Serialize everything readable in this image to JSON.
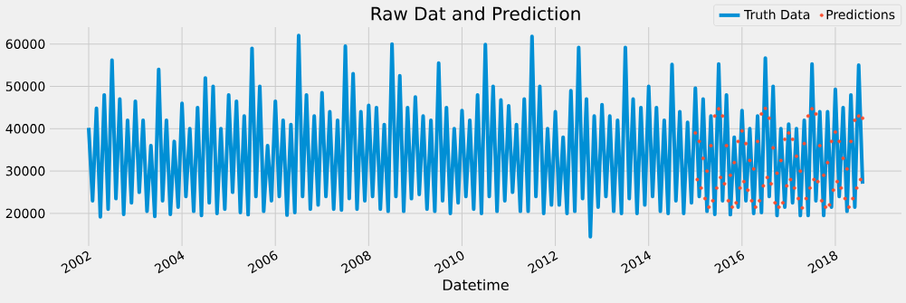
{
  "chart_data": {
    "type": "line",
    "title": "Raw Dat and Prediction",
    "xlabel": "Datetime",
    "xlim": [
      "2001-03",
      "2019-06"
    ],
    "ylim": [
      12300,
      64000
    ],
    "xticks": [
      "2002",
      "2004",
      "2006",
      "2008",
      "2010",
      "2012",
      "2014",
      "2016",
      "2018"
    ],
    "yticks": [
      20000,
      30000,
      40000,
      50000,
      60000
    ],
    "grid": true,
    "legend": "top right",
    "series": [
      {
        "name": "Truth Data",
        "color": "#008fd5",
        "marker": "none",
        "x": [
          "2002-01",
          "2002-02",
          "2002-03",
          "2002-04",
          "2002-05",
          "2002-06",
          "2002-07",
          "2002-08",
          "2002-09",
          "2002-10",
          "2002-11",
          "2002-12",
          "2003-01",
          "2003-02",
          "2003-03",
          "2003-04",
          "2003-05",
          "2003-06",
          "2003-07",
          "2003-08",
          "2003-09",
          "2003-10",
          "2003-11",
          "2003-12",
          "2004-01",
          "2004-02",
          "2004-03",
          "2004-04",
          "2004-05",
          "2004-06",
          "2004-07",
          "2004-08",
          "2004-09",
          "2004-10",
          "2004-11",
          "2004-12",
          "2005-01",
          "2005-02",
          "2005-03",
          "2005-04",
          "2005-05",
          "2005-06",
          "2005-07",
          "2005-08",
          "2005-09",
          "2005-10",
          "2005-11",
          "2005-12",
          "2006-01",
          "2006-02",
          "2006-03",
          "2006-04",
          "2006-05",
          "2006-06",
          "2006-07",
          "2006-08",
          "2006-09",
          "2006-10",
          "2006-11",
          "2006-12",
          "2007-01",
          "2007-02",
          "2007-03",
          "2007-04",
          "2007-05",
          "2007-06",
          "2007-07",
          "2007-08",
          "2007-09",
          "2007-10",
          "2007-11",
          "2007-12",
          "2008-01",
          "2008-02",
          "2008-03",
          "2008-04",
          "2008-05",
          "2008-06",
          "2008-07",
          "2008-08",
          "2008-09",
          "2008-10",
          "2008-11",
          "2008-12",
          "2009-01",
          "2009-02",
          "2009-03",
          "2009-04",
          "2009-05",
          "2009-06",
          "2009-07",
          "2009-08",
          "2009-09",
          "2009-10",
          "2009-11",
          "2009-12",
          "2010-01",
          "2010-02",
          "2010-03",
          "2010-04",
          "2010-05",
          "2010-06",
          "2010-07",
          "2010-08",
          "2010-09",
          "2010-10",
          "2010-11",
          "2010-12",
          "2011-01",
          "2011-02",
          "2011-03",
          "2011-04",
          "2011-05",
          "2011-06",
          "2011-07",
          "2011-08",
          "2011-09",
          "2011-10",
          "2011-11",
          "2011-12",
          "2012-01",
          "2012-02",
          "2012-03",
          "2012-04",
          "2012-05",
          "2012-06",
          "2012-07",
          "2012-08",
          "2012-09",
          "2012-10",
          "2012-11",
          "2012-12",
          "2013-01",
          "2013-02",
          "2013-03",
          "2013-04",
          "2013-05",
          "2013-06",
          "2013-07",
          "2013-08",
          "2013-09",
          "2013-10",
          "2013-11",
          "2013-12",
          "2014-01",
          "2014-02",
          "2014-03",
          "2014-04",
          "2014-05",
          "2014-06",
          "2014-07",
          "2014-08",
          "2014-09",
          "2014-10",
          "2014-11",
          "2014-12",
          "2015-01",
          "2015-02",
          "2015-03",
          "2015-04",
          "2015-05",
          "2015-06",
          "2015-07",
          "2015-08",
          "2015-09",
          "2015-10",
          "2015-11",
          "2015-12",
          "2016-01",
          "2016-02",
          "2016-03",
          "2016-04",
          "2016-05",
          "2016-06",
          "2016-07",
          "2016-08",
          "2016-09",
          "2016-10",
          "2016-11",
          "2016-12",
          "2017-01",
          "2017-02",
          "2017-03",
          "2017-04",
          "2017-05",
          "2017-06",
          "2017-07",
          "2017-08",
          "2017-09",
          "2017-10",
          "2017-11",
          "2017-12",
          "2018-01",
          "2018-02",
          "2018-03",
          "2018-04",
          "2018-05",
          "2018-06",
          "2018-07",
          "2018-08"
        ],
        "values": [
          40200,
          23000,
          44800,
          19200,
          48000,
          21000,
          56200,
          23500,
          47000,
          19800,
          42000,
          22500,
          46500,
          25000,
          42000,
          20500,
          36000,
          19300,
          54000,
          23000,
          42000,
          19800,
          37000,
          21500,
          46000,
          24000,
          40000,
          20500,
          45000,
          19500,
          52000,
          22500,
          50000,
          20000,
          40000,
          21000,
          48000,
          25000,
          46500,
          20200,
          43000,
          19700,
          59000,
          24000,
          50000,
          20500,
          36000,
          23000,
          46500,
          24000,
          42000,
          19600,
          41000,
          20200,
          62000,
          24000,
          48000,
          21000,
          43000,
          22000,
          48500,
          24000,
          44000,
          21000,
          42000,
          20800,
          59500,
          23500,
          53000,
          21000,
          44000,
          23000,
          45500,
          24000,
          45000,
          21000,
          41000,
          20500,
          60000,
          24000,
          52500,
          20500,
          45000,
          23500,
          47500,
          24500,
          43000,
          21000,
          42000,
          20500,
          55500,
          23000,
          45000,
          20000,
          40000,
          22500,
          44300,
          24000,
          42000,
          21000,
          48000,
          20000,
          59900,
          24000,
          50000,
          20500,
          46800,
          23000,
          45400,
          25000,
          41000,
          20500,
          47000,
          20500,
          61800,
          24000,
          50000,
          20000,
          40000,
          22000,
          44000,
          22000,
          38000,
          20000,
          49000,
          20500,
          59200,
          23500,
          47000,
          14500,
          43000,
          21500,
          45700,
          24000,
          43000,
          20500,
          42000,
          20000,
          59200,
          23500,
          47000,
          20000,
          45000,
          22000,
          50000,
          24000,
          45000,
          20500,
          42000,
          20000,
          55200,
          23000,
          44000,
          20000,
          41500,
          22500,
          49600,
          24000,
          47000,
          20500,
          43000,
          19800,
          55300,
          23000,
          48000,
          19700,
          38000,
          21500,
          44300,
          23000,
          40000,
          20000,
          43000,
          20200,
          56700,
          24000,
          50000,
          19500,
          40000,
          21500,
          41100,
          22500,
          40000,
          19500,
          42000,
          19500,
          55300,
          23000,
          44000,
          19500,
          44000,
          21500,
          49300,
          24000,
          45000,
          20500,
          48000,
          21500,
          55000,
          27000
        ]
      },
      {
        "name": "Predictions",
        "type": "scatter",
        "color": "#fc4f30",
        "marker": "circle",
        "x": [
          "2015-01-01",
          "2015-01-16",
          "2015-02-01",
          "2015-02-16",
          "2015-03-01",
          "2015-03-16",
          "2015-04-01",
          "2015-04-16",
          "2015-05-01",
          "2015-05-16",
          "2015-06-01",
          "2015-06-16",
          "2015-07-01",
          "2015-07-16",
          "2015-08-01",
          "2015-08-16",
          "2015-09-01",
          "2015-09-16",
          "2015-10-01",
          "2015-10-16",
          "2015-11-01",
          "2015-11-16",
          "2015-12-01",
          "2015-12-16",
          "2016-01-01",
          "2016-01-16",
          "2016-02-01",
          "2016-02-16",
          "2016-03-01",
          "2016-03-16",
          "2016-04-01",
          "2016-04-16",
          "2016-05-01",
          "2016-05-16",
          "2016-06-01",
          "2016-06-16",
          "2016-07-01",
          "2016-07-16",
          "2016-08-01",
          "2016-08-16",
          "2016-09-01",
          "2016-09-16",
          "2016-10-01",
          "2016-10-16",
          "2016-11-01",
          "2016-11-16",
          "2016-12-01",
          "2016-12-16",
          "2017-01-01",
          "2017-01-16",
          "2017-02-01",
          "2017-02-16",
          "2017-03-01",
          "2017-03-16",
          "2017-04-01",
          "2017-04-16",
          "2017-05-01",
          "2017-05-16",
          "2017-06-01",
          "2017-06-16",
          "2017-07-01",
          "2017-07-16",
          "2017-08-01",
          "2017-08-16",
          "2017-09-01",
          "2017-09-16",
          "2017-10-01",
          "2017-10-16",
          "2017-11-01",
          "2017-11-16",
          "2017-12-01",
          "2017-12-16",
          "2018-01-01",
          "2018-01-16",
          "2018-02-01",
          "2018-02-16",
          "2018-03-01",
          "2018-03-16",
          "2018-04-01",
          "2018-04-16",
          "2018-05-01",
          "2018-05-16",
          "2018-06-01",
          "2018-06-16",
          "2018-07-01",
          "2018-07-16",
          "2018-08-01"
        ],
        "values": [
          39000,
          28000,
          37000,
          26000,
          33000,
          23500,
          30000,
          21500,
          36000,
          23000,
          43000,
          26000,
          44700,
          28500,
          43000,
          27000,
          36000,
          23000,
          29000,
          21500,
          32000,
          22500,
          37000,
          26000,
          39500,
          27500,
          36500,
          25500,
          32500,
          23000,
          30500,
          21500,
          37000,
          23000,
          43500,
          26500,
          44800,
          28500,
          42500,
          27000,
          35500,
          22500,
          29500,
          21500,
          32500,
          22500,
          37500,
          26500,
          39000,
          28000,
          37500,
          26000,
          33500,
          23500,
          30000,
          21300,
          36500,
          23500,
          43000,
          26000,
          44700,
          28000,
          43500,
          27500,
          36000,
          23000,
          29000,
          21500,
          32000,
          22000,
          37000,
          25500,
          39200,
          27500,
          37000,
          26000,
          33000,
          23500,
          30500,
          21500,
          37000,
          23500,
          42000,
          26000,
          43000,
          28000,
          42500
        ]
      }
    ]
  }
}
